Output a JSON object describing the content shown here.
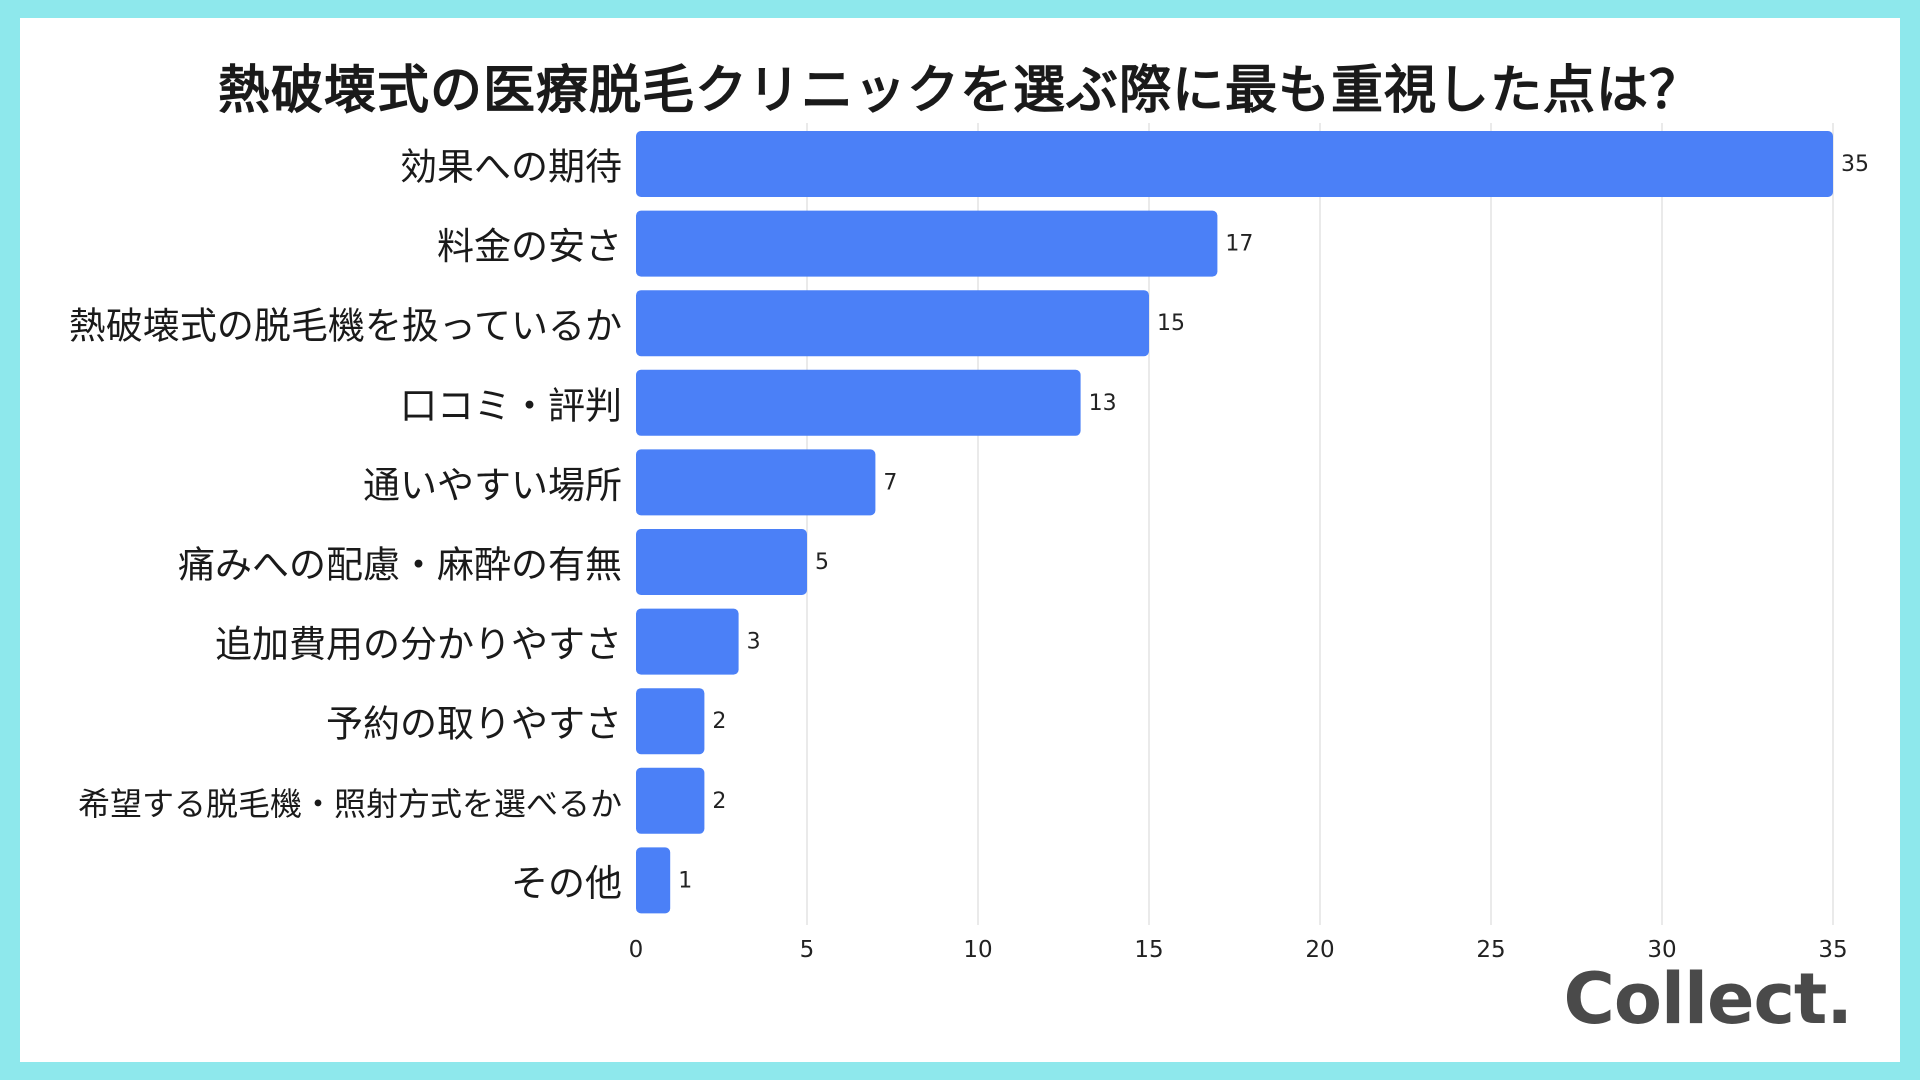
{
  "title": "熱破壊式の医療脱毛クリニックを選ぶ際に最も重視した点は？",
  "logo": "Collect.",
  "colors": {
    "bar": "#4b80f7",
    "grid": "#e3e3e3",
    "border": "#8ee8ec"
  },
  "chart_data": {
    "type": "bar",
    "orientation": "horizontal",
    "categories": [
      "効果への期待",
      "料金の安さ",
      "熱破壊式の脱毛機を扱っているか",
      "口コミ・評判",
      "通いやすい場所",
      "痛みへの配慮・麻酔の有無",
      "追加費用の分かりやすさ",
      "予約の取りやすさ",
      "希望する脱毛機・照射方式を選べるか",
      "その他"
    ],
    "values": [
      35,
      17,
      15,
      13,
      7,
      5,
      3,
      2,
      2,
      1
    ],
    "xlim": [
      0,
      35
    ],
    "xticks": [
      "0",
      "5",
      "10",
      "15",
      "20",
      "25",
      "30",
      "35"
    ],
    "grid": "vertical"
  }
}
